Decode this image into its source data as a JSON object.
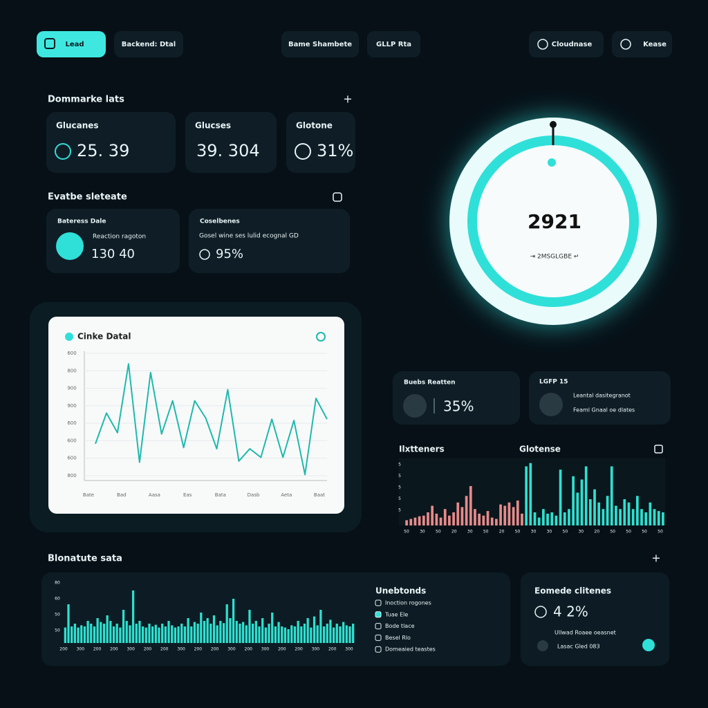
{
  "nav": [
    "Lead",
    "Backend: Dtal",
    "Bame Shambete",
    "GLLP Rta",
    "Cloudnase",
    "Kease"
  ],
  "section1": {
    "title": "Dommarke lats",
    "cards": [
      {
        "label": "Glucanes",
        "value": "25. 39"
      },
      {
        "label": "Glucses",
        "value": "39. 304"
      },
      {
        "label": "Glotone",
        "value": "31%"
      }
    ]
  },
  "section2": {
    "title": "Evatbe sleteate",
    "cards": [
      {
        "label": "Bateress Dale",
        "sublabel": "Reaction ragoton",
        "value": "130 40"
      },
      {
        "label": "Coselbenes",
        "sublabel": "Gosel wine ses lulid ecognal GD",
        "value": "95%"
      }
    ]
  },
  "gauge": {
    "value": 2921,
    "caption": "⇥ 2MSGLGBE ↵"
  },
  "line_chart": {
    "title": "Cinke Datal",
    "color": "#1fb8ac",
    "ylim": [
      0,
      100
    ],
    "y_labels": [
      "600",
      "800",
      "900",
      "900",
      "600",
      "600",
      "600",
      "800"
    ],
    "x_labels": [
      "Bate",
      "Bad",
      "Aasa",
      "Eas",
      "Bata",
      "Dasb",
      "Aeta",
      "Baat"
    ],
    "values": [
      27,
      52,
      36,
      92,
      12,
      85,
      35,
      62,
      24,
      62,
      48,
      23,
      71,
      13,
      23,
      16,
      47,
      16,
      46,
      2,
      64,
      47
    ]
  },
  "mini_cards": [
    {
      "label": "Buebs Reatten",
      "value": "35%"
    },
    {
      "label": "LGFP 15",
      "lines": [
        "Leantal dasitegranot",
        "Feaml Gnaal oe dlates"
      ]
    }
  ],
  "bar_chart": {
    "titles": [
      "Ilxtteners",
      "Glotense"
    ],
    "ylim": [
      0,
      100
    ],
    "y_labels": [
      "5",
      "5",
      "5",
      "5",
      "5"
    ],
    "x_labels": [
      "50",
      "30",
      "50",
      "20",
      "30",
      "50",
      "20",
      "50",
      "30",
      "30",
      "50",
      "30",
      "20",
      "50",
      "50",
      "50",
      "50"
    ],
    "series": [
      {
        "color": "#e88a8a",
        "values": [
          8,
          10,
          12,
          14,
          15,
          20,
          30,
          18,
          12,
          25,
          15,
          20,
          35,
          28,
          45,
          60,
          25,
          18,
          15,
          22,
          12,
          10,
          32,
          30,
          35,
          28,
          38,
          18
        ]
      },
      {
        "color": "#2fe0d0",
        "values": [
          90,
          95,
          20,
          12,
          25,
          18,
          20,
          15,
          85,
          20,
          25,
          75,
          50,
          70,
          90,
          40,
          55,
          35,
          25,
          45,
          90,
          30,
          25,
          40,
          35,
          25,
          45,
          25,
          20,
          35,
          25,
          22,
          20
        ]
      }
    ]
  },
  "section3": {
    "title": "Blonatute sata"
  },
  "wave_chart": {
    "color": "#2fe0d0",
    "ylim": [
      0,
      100
    ],
    "y_labels": [
      "80",
      "60",
      "50",
      "50"
    ],
    "x_labels": [
      "200",
      "300",
      "200",
      "200",
      "300",
      "200",
      "200",
      "300",
      "200",
      "200",
      "300",
      "200",
      "300",
      "200",
      "200",
      "300",
      "200",
      "300"
    ],
    "values": [
      28,
      70,
      30,
      35,
      28,
      32,
      30,
      40,
      35,
      30,
      45,
      38,
      35,
      50,
      40,
      30,
      35,
      28,
      60,
      40,
      32,
      95,
      35,
      40,
      30,
      28,
      35,
      30,
      33,
      28,
      35,
      30,
      40,
      32,
      28,
      30,
      35,
      30,
      45,
      30,
      38,
      35,
      55,
      40,
      45,
      35,
      50,
      32,
      40,
      36,
      70,
      45,
      80,
      40,
      35,
      38,
      32,
      60,
      35,
      40,
      30,
      45,
      28,
      35,
      55,
      30,
      38,
      30,
      28,
      25,
      32,
      30,
      40,
      30,
      35,
      45,
      28,
      48,
      32,
      60,
      30,
      35,
      42,
      28,
      35,
      30,
      38,
      32,
      30,
      35
    ]
  },
  "legend": {
    "title": "Unebtonds",
    "items": [
      "Inoction rogones",
      "Tuae Ele",
      "Bode tlace",
      "Besel Rlo",
      "Domeaied teastes"
    ]
  },
  "summary": {
    "title": "Eomede clitenes",
    "value": "4 2%",
    "lines": [
      "Ullwad Roaee oeasnet",
      "Lasac Gled 083"
    ]
  }
}
